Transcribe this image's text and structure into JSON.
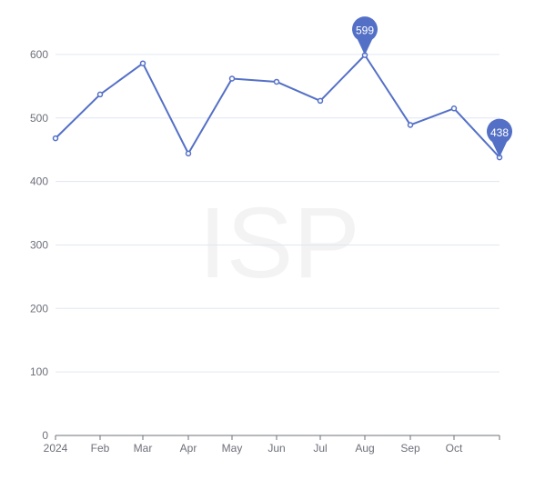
{
  "watermark": "ISP",
  "colors": {
    "series": "#5470c6",
    "axis": "#6e7079",
    "grid": "#e0e6f1",
    "background": "#ffffff",
    "watermark": "#e9e9e9"
  },
  "chart_data": {
    "type": "line",
    "title": "",
    "xlabel": "",
    "ylabel": "",
    "x_tick_labels": [
      "2024",
      "Feb",
      "Mar",
      "Apr",
      "May",
      "Jun",
      "Jul",
      "Aug",
      "Sep",
      "Oct"
    ],
    "x": [
      "2024-01",
      "2024-02",
      "2024-03",
      "2024-04",
      "2024-05",
      "2024-06",
      "2024-07",
      "2024-08",
      "2024-09",
      "2024-10",
      "2024-11"
    ],
    "series": [
      {
        "values": [
          468,
          537,
          586,
          444,
          562,
          557,
          527,
          599,
          489,
          515,
          438
        ]
      }
    ],
    "ylim": [
      0,
      650
    ],
    "y_ticks": [
      0,
      100,
      200,
      300,
      400,
      500,
      600
    ],
    "grid": true,
    "markers": [
      {
        "type": "max",
        "x": "2024-08",
        "value": 599,
        "label": "599"
      },
      {
        "type": "min",
        "x": "2024-11",
        "value": 438,
        "label": "438"
      }
    ]
  }
}
